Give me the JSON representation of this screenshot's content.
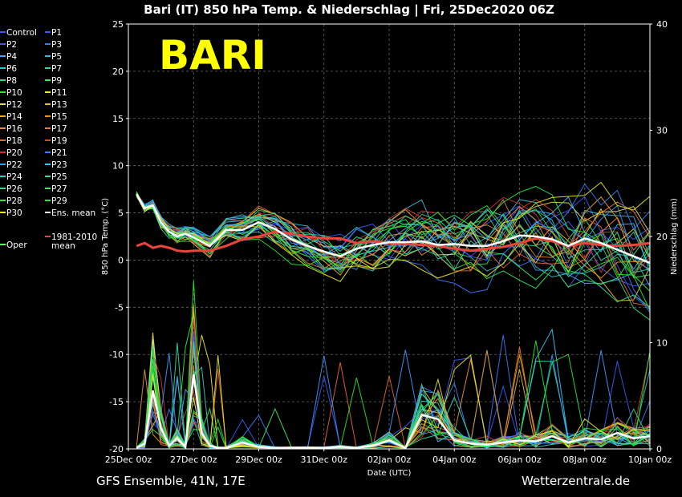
{
  "title": "Bari  (IT)  850 hPa Temp. & Niederschlag | Fri, 25Dec2020 06Z",
  "city_label": "BARI",
  "footer_left": "GFS Ensemble, 41N, 17E",
  "footer_right": "Wetterzentrale.de",
  "colors": {
    "background": "#000000",
    "grid": "#666666",
    "ens_mean": "#ffffff",
    "climate_mean": "#e8453c",
    "city_label": "#ffff00"
  },
  "legend": [
    {
      "label": "Control",
      "color": "#3a5cff"
    },
    {
      "label": "P1",
      "color": "#3a5cff"
    },
    {
      "label": "P2",
      "color": "#3a5cff"
    },
    {
      "label": "P3",
      "color": "#3a7cff"
    },
    {
      "label": "P4",
      "color": "#4aa0ff"
    },
    {
      "label": "P5",
      "color": "#33bbdd"
    },
    {
      "label": "P6",
      "color": "#33cccc"
    },
    {
      "label": "P7",
      "color": "#33ddaa"
    },
    {
      "label": "P8",
      "color": "#33dd77"
    },
    {
      "label": "P9",
      "color": "#33ee55"
    },
    {
      "label": "P10",
      "color": "#22ee22"
    },
    {
      "label": "P11",
      "color": "#eeee22"
    },
    {
      "label": "P12",
      "color": "#eedd55"
    },
    {
      "label": "P13",
      "color": "#eebb33"
    },
    {
      "label": "P14",
      "color": "#eeaa22"
    },
    {
      "label": "P15",
      "color": "#ee9922"
    },
    {
      "label": "P16",
      "color": "#ee8833"
    },
    {
      "label": "P17",
      "color": "#ee7733"
    },
    {
      "label": "P18",
      "color": "#ee6633"
    },
    {
      "label": "P19",
      "color": "#dd4422"
    },
    {
      "label": "P20",
      "color": "#cc3333"
    },
    {
      "label": "P21",
      "color": "#3a7cff"
    },
    {
      "label": "P22",
      "color": "#3a9cff"
    },
    {
      "label": "P23",
      "color": "#33ccff"
    },
    {
      "label": "P24",
      "color": "#33cccc"
    },
    {
      "label": "P25",
      "color": "#33ddaa"
    },
    {
      "label": "P26",
      "color": "#33dd88"
    },
    {
      "label": "P27",
      "color": "#33ee66"
    },
    {
      "label": "P28",
      "color": "#22ee44"
    },
    {
      "label": "P29",
      "color": "#22ee22"
    },
    {
      "label": "P30",
      "color": "#eeee22"
    },
    {
      "label": "Ens. mean",
      "color": "#ffffff"
    },
    {
      "label": "1981-2010 mean",
      "color": "#e8453c"
    },
    {
      "label": "Oper",
      "color": "#66ff66"
    }
  ],
  "chart_data": {
    "type": "line",
    "title": "Bari  (IT)  850 hPa Temp. & Niederschlag | Fri, 25Dec2020 06Z",
    "xlabel": "Date (UTC)",
    "ylabel": "850 hPa Temp. (°C)",
    "y2label": "Niederschlag (mm)",
    "x_range_days": [
      0,
      16
    ],
    "x_ticks": [
      {
        "day": 0,
        "label": "25Dec 00z"
      },
      {
        "day": 2,
        "label": "27Dec 00z"
      },
      {
        "day": 4,
        "label": "29Dec 00z"
      },
      {
        "day": 6,
        "label": "31Dec 00z"
      },
      {
        "day": 8,
        "label": "02Jan 00z"
      },
      {
        "day": 10,
        "label": "04Jan 00z"
      },
      {
        "day": 12,
        "label": "06Jan 00z"
      },
      {
        "day": 14,
        "label": "08Jan 00z"
      },
      {
        "day": 16,
        "label": "10Jan 00z"
      }
    ],
    "ylim": [
      -20,
      25
    ],
    "y_ticks": [
      25,
      20,
      15,
      10,
      5,
      0,
      -5,
      -10,
      -15,
      -20
    ],
    "y2lim": [
      0,
      40
    ],
    "y2_ticks": [
      40,
      30,
      20,
      10,
      0
    ],
    "grid": true,
    "legend_position": "left",
    "temperature_series": {
      "x_days": [
        0.25,
        0.5,
        0.75,
        1,
        1.25,
        1.5,
        1.75,
        2,
        2.5,
        3,
        3.5,
        4,
        4.5,
        5,
        5.5,
        6,
        6.5,
        7,
        7.5,
        8,
        8.5,
        9,
        9.5,
        10,
        10.5,
        11,
        11.5,
        12,
        12.5,
        13,
        13.5,
        14,
        14.5,
        15,
        15.5,
        16
      ],
      "ens_mean": [
        7,
        5.5,
        5.8,
        4,
        3,
        2.5,
        2.8,
        2.4,
        1.5,
        3.2,
        3.2,
        4,
        3.3,
        2.2,
        1.5,
        0.9,
        0.4,
        1.2,
        1.6,
        1.9,
        1.9,
        2.0,
        1.6,
        1.7,
        1.5,
        1.5,
        2.0,
        2.6,
        2.5,
        2.2,
        1.5,
        2.3,
        1.8,
        1.1,
        0.4,
        -0.3
      ],
      "clim_mean": [
        1.5,
        1.8,
        1.3,
        1.5,
        1.3,
        1.0,
        0.9,
        1.0,
        1.0,
        1.5,
        2.2,
        2.5,
        3.0,
        2.8,
        2.5,
        2.3,
        2.3,
        1.8,
        2.0,
        1.8,
        1.7,
        1.6,
        1.5,
        1.2,
        1.0,
        1.2,
        1.4,
        1.8,
        2.3,
        2.0,
        1.5,
        1.8,
        1.6,
        1.5,
        1.6,
        1.8
      ]
    },
    "precip_mean_mm": {
      "x_days": [
        0.25,
        0.5,
        0.75,
        1,
        1.25,
        1.5,
        1.75,
        2,
        2.25,
        2.5,
        2.75,
        3,
        3.5,
        4,
        4.5,
        5,
        5.5,
        6,
        6.5,
        7,
        7.5,
        8,
        8.5,
        9,
        9.5,
        10,
        10.5,
        11,
        11.5,
        12,
        12.5,
        13,
        13.5,
        14,
        14.5,
        15,
        15.5,
        16
      ],
      "values": [
        0.1,
        0.5,
        5.5,
        2,
        0.3,
        1,
        0.2,
        7,
        1.5,
        0.3,
        0.1,
        0.1,
        0.6,
        0.2,
        0.1,
        0.1,
        0.1,
        0.1,
        0.2,
        0.1,
        0.3,
        0.8,
        0.1,
        3.2,
        2.8,
        0.8,
        0.5,
        0.4,
        0.6,
        0.8,
        0.7,
        1.2,
        0.6,
        1.0,
        0.9,
        1.5,
        1.0,
        1.2
      ]
    }
  }
}
